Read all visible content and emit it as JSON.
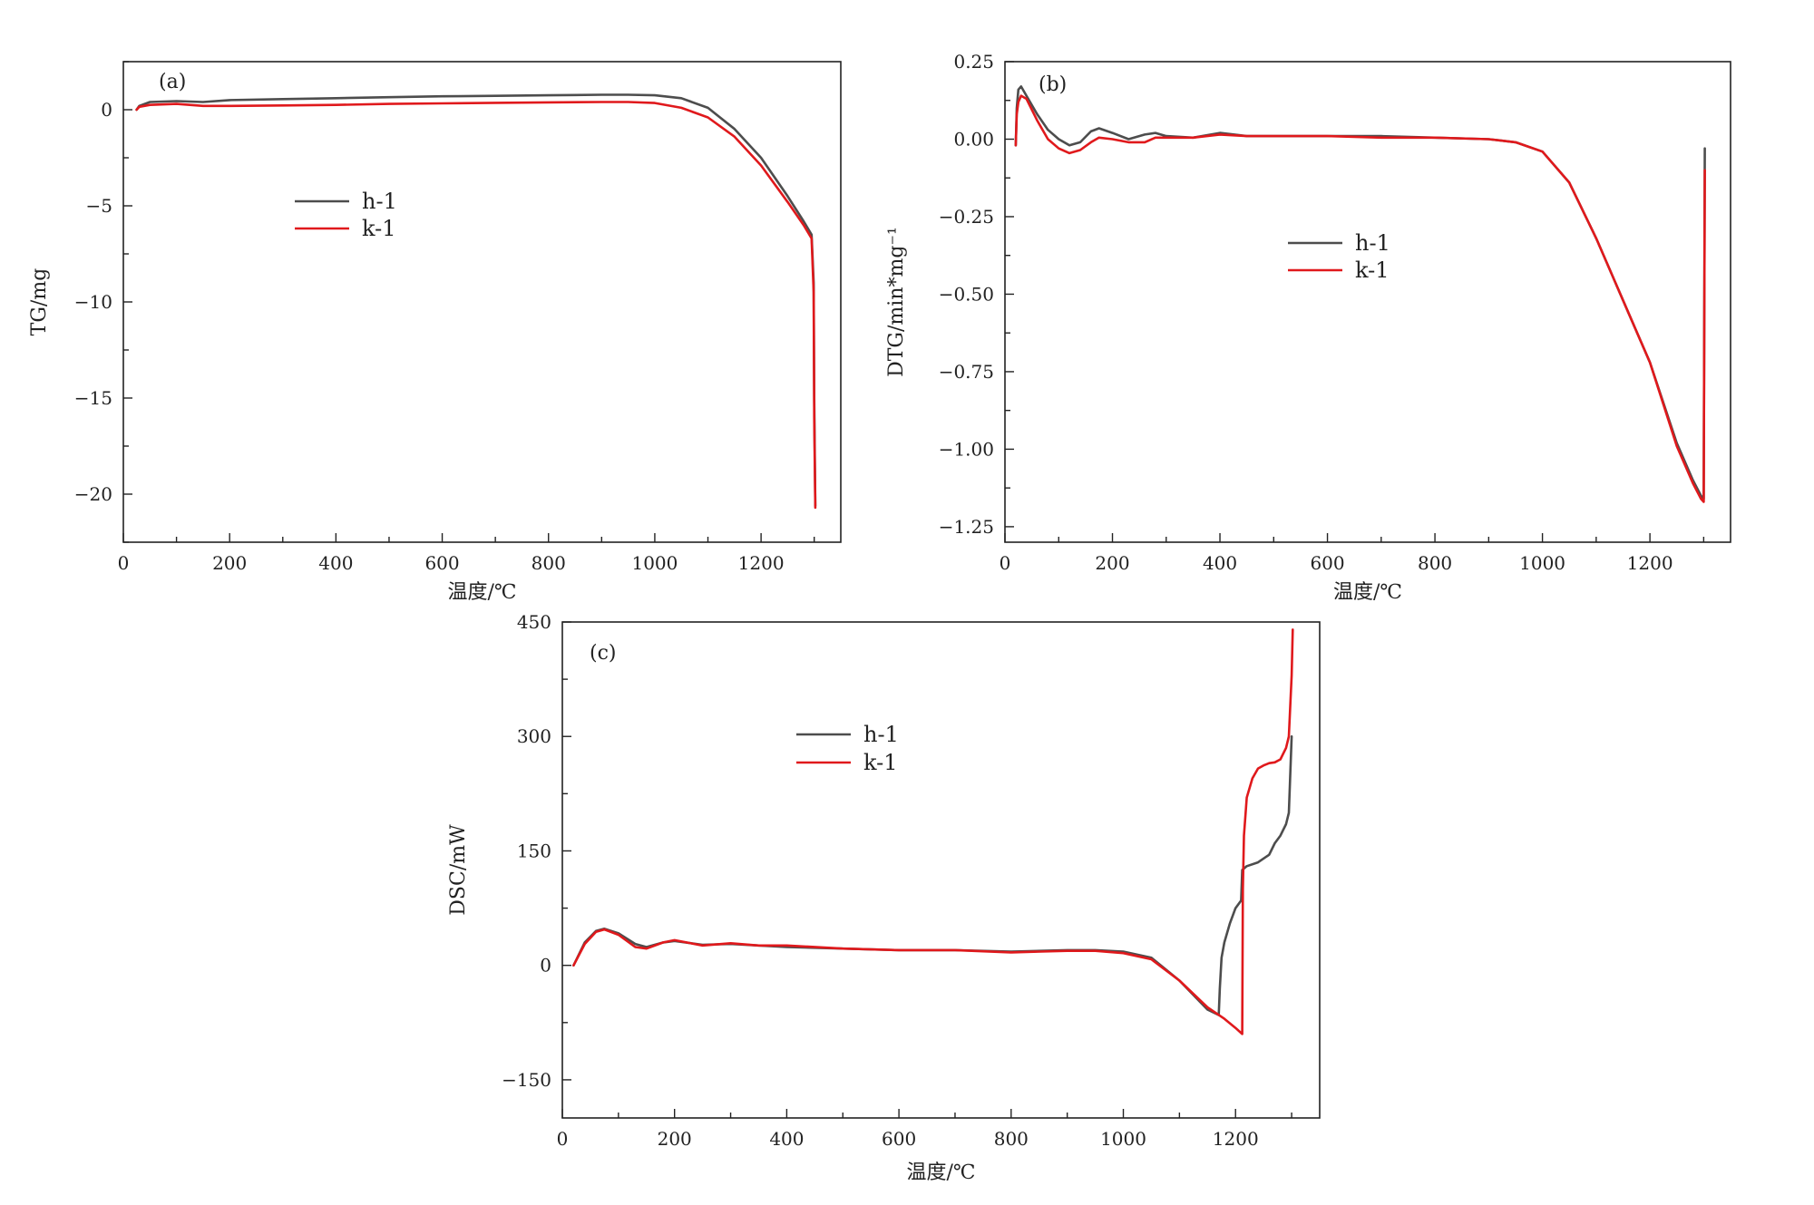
{
  "chart_data": [
    {
      "id": "a",
      "type": "line",
      "panel_label": "(a)",
      "xlabel": "温度/℃",
      "ylabel": "TG/mg",
      "xlim": [
        0,
        1350
      ],
      "ylim": [
        -22.5,
        2.5
      ],
      "xticks": [
        0,
        200,
        400,
        600,
        800,
        1000,
        1200
      ],
      "yticks": [
        0,
        -5,
        -10,
        -15,
        -20
      ],
      "ytick_labels": [
        "0",
        "−5",
        "−10",
        "−15",
        "−20"
      ],
      "legend": {
        "placement": "upper-center-left"
      },
      "series": [
        {
          "name": "h-1",
          "color": "#4d4d4d",
          "x": [
            25,
            30,
            50,
            100,
            150,
            200,
            300,
            400,
            500,
            600,
            700,
            800,
            900,
            950,
            1000,
            1050,
            1100,
            1150,
            1200,
            1250,
            1280,
            1295,
            1299,
            1300,
            1302
          ],
          "y": [
            0.0,
            0.2,
            0.4,
            0.45,
            0.4,
            0.5,
            0.55,
            0.6,
            0.65,
            0.7,
            0.72,
            0.75,
            0.78,
            0.78,
            0.75,
            0.6,
            0.1,
            -1.0,
            -2.5,
            -4.5,
            -5.8,
            -6.5,
            -9.0,
            -15.0,
            -20.6
          ]
        },
        {
          "name": "k-1",
          "color": "#e0191c",
          "x": [
            25,
            30,
            50,
            100,
            150,
            200,
            300,
            400,
            500,
            600,
            700,
            800,
            900,
            950,
            1000,
            1050,
            1100,
            1150,
            1200,
            1250,
            1280,
            1295,
            1299,
            1300,
            1302
          ],
          "y": [
            0.0,
            0.15,
            0.25,
            0.3,
            0.2,
            0.2,
            0.22,
            0.25,
            0.3,
            0.33,
            0.36,
            0.38,
            0.4,
            0.4,
            0.35,
            0.1,
            -0.4,
            -1.4,
            -2.9,
            -4.8,
            -6.0,
            -6.7,
            -9.5,
            -16.0,
            -20.7
          ]
        }
      ]
    },
    {
      "id": "b",
      "type": "line",
      "panel_label": "(b)",
      "xlabel": "温度/℃",
      "ylabel": "DTG/min*mg⁻¹",
      "xlim": [
        0,
        1350
      ],
      "ylim": [
        -1.3,
        0.25
      ],
      "xticks": [
        0,
        200,
        400,
        600,
        800,
        1000,
        1200
      ],
      "yticks": [
        0.25,
        0.0,
        -0.25,
        -0.5,
        -0.75,
        -1.0,
        -1.25
      ],
      "ytick_labels": [
        "0.25",
        "0.00",
        "−0.25",
        "−0.50",
        "−0.75",
        "−1.00",
        "−1.25"
      ],
      "legend": {
        "placement": "center-right"
      },
      "series": [
        {
          "name": "h-1",
          "color": "#4d4d4d",
          "x": [
            20,
            22,
            25,
            30,
            40,
            60,
            80,
            100,
            120,
            140,
            160,
            175,
            200,
            230,
            260,
            280,
            300,
            350,
            400,
            450,
            500,
            600,
            700,
            800,
            900,
            950,
            1000,
            1050,
            1100,
            1150,
            1200,
            1250,
            1280,
            1295,
            1300,
            1301,
            1302
          ],
          "y": [
            -0.02,
            0.1,
            0.16,
            0.17,
            0.14,
            0.08,
            0.03,
            0.0,
            -0.02,
            -0.01,
            0.025,
            0.035,
            0.02,
            0.0,
            0.015,
            0.02,
            0.01,
            0.005,
            0.02,
            0.01,
            0.01,
            0.01,
            0.01,
            0.005,
            0.0,
            -0.01,
            -0.04,
            -0.14,
            -0.32,
            -0.52,
            -0.72,
            -0.98,
            -1.1,
            -1.15,
            -1.16,
            -0.6,
            -0.03
          ]
        },
        {
          "name": "k-1",
          "color": "#e0191c",
          "x": [
            20,
            22,
            25,
            30,
            40,
            60,
            80,
            100,
            120,
            140,
            160,
            175,
            200,
            230,
            260,
            280,
            300,
            350,
            400,
            450,
            500,
            600,
            700,
            800,
            900,
            950,
            1000,
            1050,
            1100,
            1150,
            1200,
            1250,
            1280,
            1295,
            1300,
            1301,
            1302
          ],
          "y": [
            -0.02,
            0.08,
            0.12,
            0.14,
            0.13,
            0.06,
            0.0,
            -0.03,
            -0.045,
            -0.035,
            -0.01,
            0.005,
            0.0,
            -0.01,
            -0.01,
            0.005,
            0.005,
            0.005,
            0.015,
            0.01,
            0.01,
            0.01,
            0.005,
            0.005,
            0.0,
            -0.01,
            -0.04,
            -0.14,
            -0.32,
            -0.52,
            -0.72,
            -0.99,
            -1.11,
            -1.16,
            -1.17,
            -0.6,
            -0.1
          ]
        }
      ]
    },
    {
      "id": "c",
      "type": "line",
      "panel_label": "(c)",
      "xlabel": "温度/℃",
      "ylabel": "DSC/mW",
      "xlim": [
        0,
        1350
      ],
      "ylim": [
        -200,
        450
      ],
      "xticks": [
        0,
        200,
        400,
        600,
        800,
        1000,
        1200
      ],
      "yticks": [
        450,
        300,
        150,
        0,
        -150
      ],
      "ytick_labels": [
        "450",
        "300",
        "150",
        "0",
        "−150"
      ],
      "legend": {
        "placement": "upper-center"
      },
      "series": [
        {
          "name": "h-1",
          "color": "#4d4d4d",
          "x": [
            20,
            40,
            60,
            75,
            100,
            130,
            150,
            180,
            200,
            250,
            300,
            350,
            400,
            500,
            600,
            700,
            800,
            900,
            950,
            1000,
            1050,
            1100,
            1150,
            1170,
            1172,
            1175,
            1180,
            1190,
            1200,
            1210,
            1212,
            1220,
            1240,
            1260,
            1270,
            1280,
            1290,
            1295,
            1300
          ],
          "y": [
            0,
            30,
            45,
            48,
            42,
            28,
            24,
            30,
            32,
            27,
            28,
            26,
            24,
            22,
            20,
            20,
            18,
            20,
            20,
            18,
            10,
            -20,
            -58,
            -65,
            -30,
            10,
            30,
            55,
            75,
            85,
            125,
            130,
            135,
            145,
            160,
            170,
            185,
            200,
            300
          ]
        },
        {
          "name": "k-1",
          "color": "#e0191c",
          "x": [
            20,
            40,
            60,
            75,
            100,
            130,
            150,
            180,
            200,
            250,
            300,
            350,
            400,
            500,
            600,
            700,
            800,
            900,
            950,
            1000,
            1050,
            1100,
            1150,
            1180,
            1200,
            1212,
            1213,
            1215,
            1220,
            1230,
            1240,
            1250,
            1260,
            1270,
            1280,
            1290,
            1295,
            1300,
            1302
          ],
          "y": [
            0,
            28,
            44,
            47,
            40,
            24,
            22,
            30,
            33,
            26,
            29,
            26,
            26,
            22,
            20,
            20,
            17,
            19,
            19,
            16,
            8,
            -20,
            -55,
            -70,
            -82,
            -90,
            100,
            170,
            220,
            245,
            258,
            262,
            265,
            266,
            270,
            285,
            300,
            380,
            440
          ]
        }
      ]
    }
  ]
}
